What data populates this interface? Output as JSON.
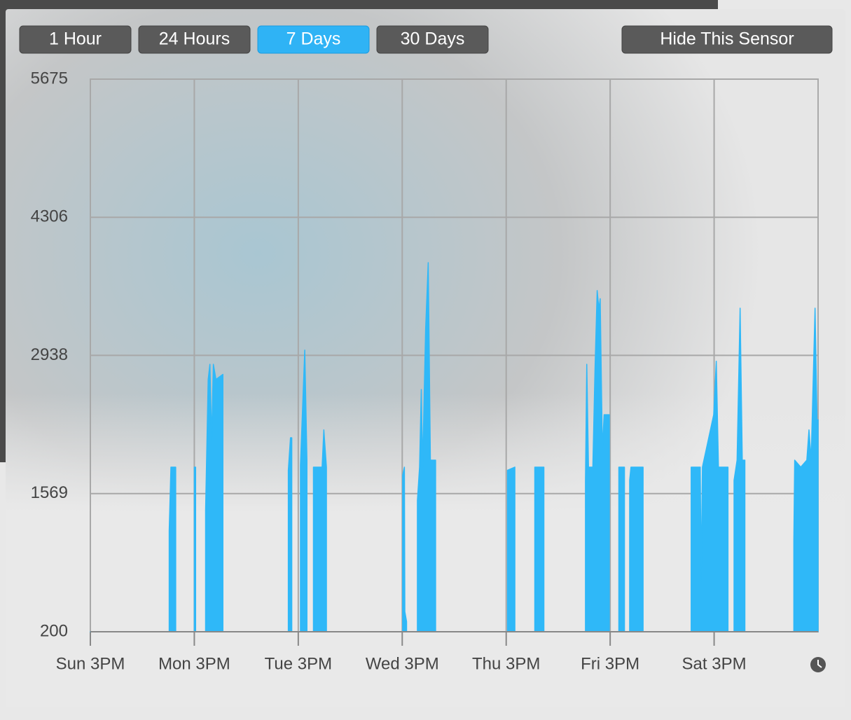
{
  "buttons": [
    "1 Hour",
    "24 Hours",
    "7 Days",
    "30 Days"
  ],
  "selected_button": 2,
  "hide_button": "Hide This Sensor",
  "chart_data": {
    "type": "area",
    "color": "#2fb8f8",
    "grid": true,
    "xlim": [
      0,
      168
    ],
    "ylim": [
      200,
      5675
    ],
    "yticks": [
      200,
      1569,
      2938,
      4306,
      5675
    ],
    "xticks": [
      {
        "value": 0,
        "label": "Sun 3PM"
      },
      {
        "value": 24,
        "label": "Mon 3PM"
      },
      {
        "value": 48,
        "label": "Tue 3PM"
      },
      {
        "value": 72,
        "label": "Wed 3PM"
      },
      {
        "value": 96,
        "label": "Thu 3PM"
      },
      {
        "value": 120,
        "label": "Fri 3PM"
      },
      {
        "value": 144,
        "label": "Sat 3PM"
      }
    ],
    "x": [
      0,
      18.2,
      18.2,
      18.6,
      19.7,
      19.7,
      24.0,
      24.0,
      24.3,
      24.3,
      26.6,
      26.6,
      27.2,
      27.6,
      28.0,
      28.4,
      29.0,
      30.6,
      30.6,
      45.7,
      45.7,
      46.2,
      46.5,
      46.5,
      48.5,
      48.5,
      49.5,
      50.0,
      50.0,
      51.5,
      51.5,
      53.5,
      53.9,
      54.5,
      54.5,
      72.1,
      72.1,
      72.5,
      72.6,
      73.0,
      73.0,
      75.5,
      75.5,
      76.0,
      76.4,
      76.7,
      77.4,
      78.0,
      78.5,
      79.7,
      79.7,
      96.3,
      96.3,
      98.0,
      98.0,
      102.6,
      102.6,
      104.7,
      104.7,
      114.3,
      114.3,
      114.6,
      115.0,
      116.0,
      116.5,
      117.0,
      117.4,
      117.7,
      118.2,
      118.6,
      119.8,
      119.8,
      122.0,
      122.0,
      123.3,
      123.3,
      124.5,
      124.5,
      124.8,
      127.6,
      127.6,
      138.7,
      138.7,
      140.8,
      141.0,
      141.3,
      143.9,
      144.5,
      145.0,
      147.2,
      147.2,
      148.6,
      148.6,
      149.3,
      150.0,
      150.5,
      151.1,
      151.1,
      162.4,
      162.4,
      162.6,
      164.0,
      165.4,
      165.9,
      166.4,
      167.3,
      167.8,
      168.0,
      168.0
    ],
    "values": [
      200,
      200,
      1200,
      1831,
      1831,
      200,
      200,
      1831,
      1831,
      200,
      200,
      1400,
      2700,
      2850,
      2100,
      2850,
      2700,
      2750,
      200,
      200,
      1800,
      2122,
      2122,
      200,
      200,
      1850,
      2990,
      1900,
      200,
      200,
      1831,
      1831,
      2200,
      1831,
      200,
      200,
      1750,
      1831,
      400,
      300,
      200,
      200,
      1500,
      1831,
      2600,
      1831,
      3200,
      3857,
      1900,
      1900,
      200,
      200,
      1800,
      1831,
      200,
      200,
      1831,
      1831,
      200,
      200,
      1700,
      2850,
      1831,
      1831,
      2800,
      3580,
      3400,
      3500,
      2000,
      2350,
      2350,
      200,
      200,
      1831,
      1831,
      200,
      200,
      1700,
      1831,
      1831,
      200,
      200,
      1831,
      1831,
      700,
      1831,
      2350,
      2880,
      1831,
      1831,
      200,
      200,
      1700,
      1900,
      3406,
      1900,
      1900,
      200,
      200,
      1100,
      1900,
      1831,
      1900,
      2200,
      1900,
      3406,
      2200,
      2300,
      200
    ]
  }
}
